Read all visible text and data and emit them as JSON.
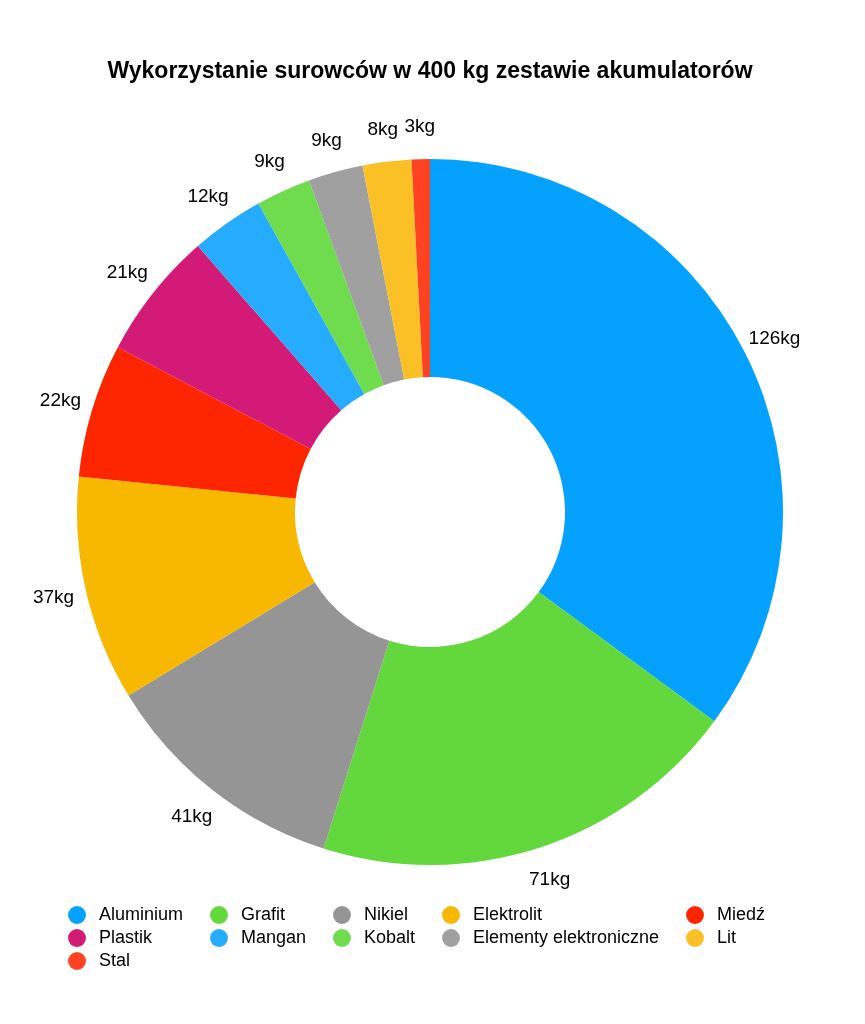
{
  "chart_data": {
    "type": "donut",
    "title": "Wykorzystanie surowców w 400 kg zestawie akumulatorów",
    "categories": [
      "Aluminium",
      "Grafit",
      "Nikiel",
      "Elektrolit",
      "Miedź",
      "Plastik",
      "Mangan",
      "Kobalt",
      "Elementy elektroniczne",
      "Lit",
      "Stal"
    ],
    "values": [
      126,
      71,
      41,
      37,
      22,
      21,
      12,
      9,
      9,
      8,
      3
    ],
    "colors": [
      "#04a2fe",
      "#62d83c",
      "#959595",
      "#f8b800",
      "#fe2600",
      "#d31a76",
      "#26acff",
      "#6fdc4e",
      "#a0a0a0",
      "#fac025",
      "#fe4322"
    ],
    "value_labels": [
      "126kg",
      "71kg",
      "41kg",
      "37kg",
      "22kg",
      "21kg",
      "12kg",
      "9kg",
      "9kg",
      "8kg",
      "3kg"
    ],
    "legend": "bottom"
  }
}
